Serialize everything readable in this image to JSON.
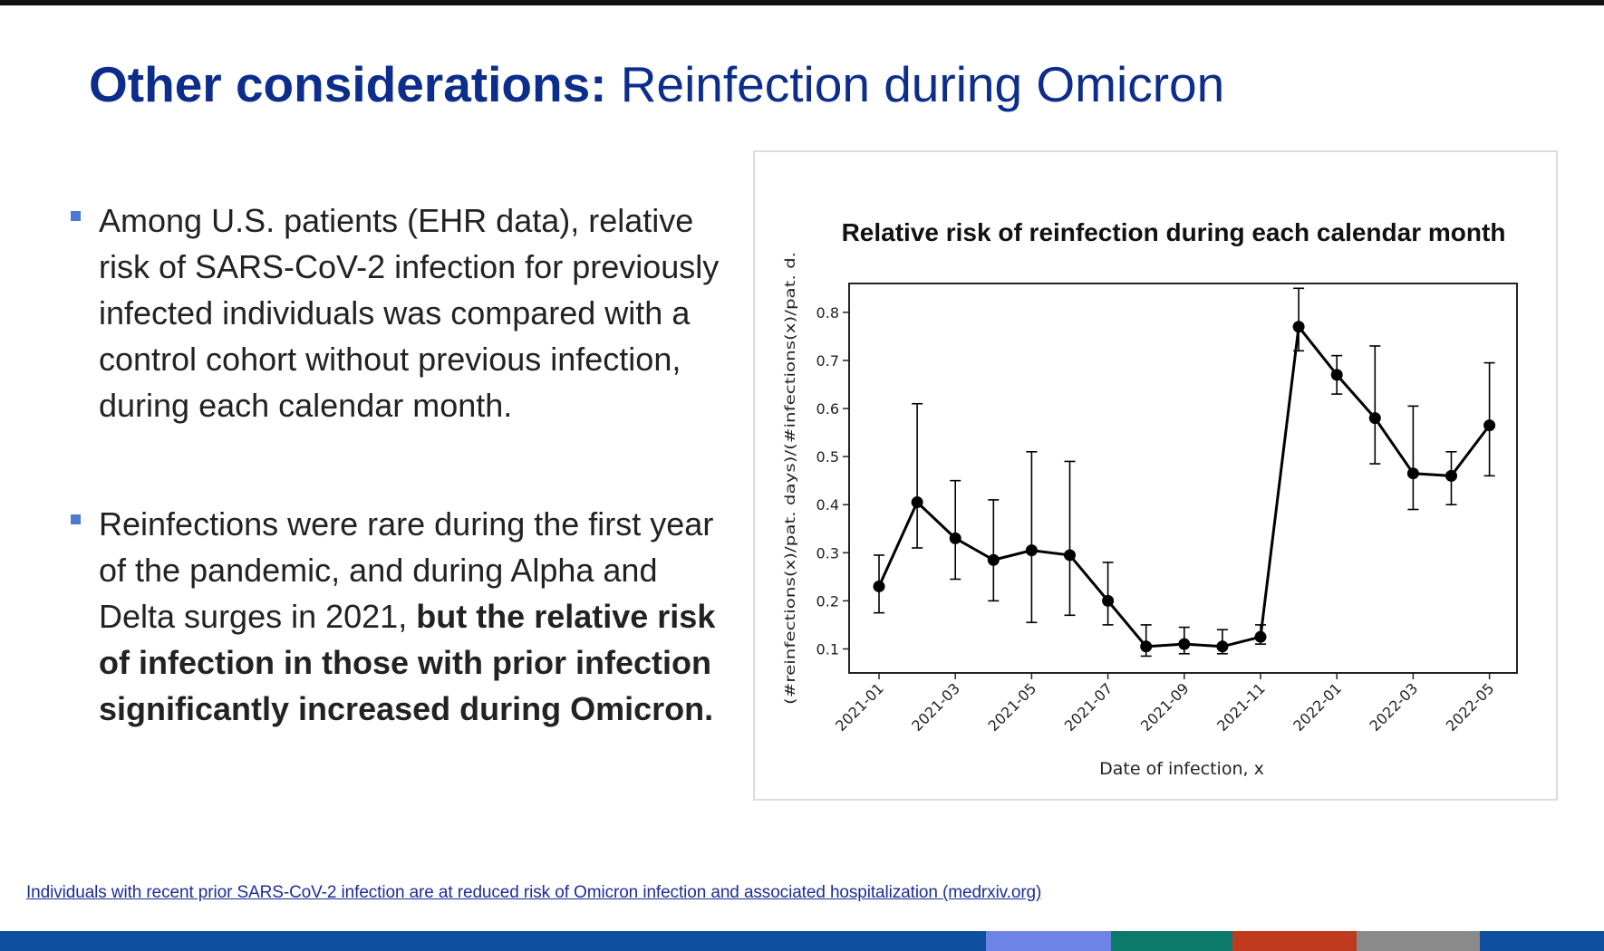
{
  "slide": {
    "title_bold": "Other considerations:",
    "title_rest": " Reinfection during Omicron",
    "bullet1": "Among U.S. patients (EHR data), relative risk of SARS-CoV-2 infection for previously infected individuals was compared with a control cohort without previous infection, during each calendar month.",
    "bullet2_plain": "Reinfections were rare during the first year of the pandemic, and during Alpha and Delta surges in 2021,",
    "bullet2_bold": " but the relative risk of infection in those with prior infection significantly increased during Omicron.",
    "footnote": "Individuals with recent prior SARS-CoV-2 infection are at reduced risk of Omicron infection and associated hospitalization (medrxiv.org)"
  },
  "chart_data": {
    "type": "line",
    "title": "Relative risk of reinfection during each calendar month",
    "xlabel": "Date of infection, x",
    "ylabel": "(#reinfections(x)/pat. days)/(#infections(x)/pat. d.",
    "ylim": [
      0.05,
      0.86
    ],
    "yticks": [
      "0.1",
      "0.2",
      "0.3",
      "0.4",
      "0.5",
      "0.6",
      "0.7",
      "0.8"
    ],
    "xticks": [
      "2021-01",
      "2021-03",
      "2021-05",
      "2021-07",
      "2021-09",
      "2021-11",
      "2022-01",
      "2022-03",
      "2022-05"
    ],
    "grid": false,
    "color": "#000000",
    "points": [
      {
        "x": "2021-01",
        "y": 0.23,
        "lo": 0.175,
        "hi": 0.295
      },
      {
        "x": "2021-02",
        "y": 0.405,
        "lo": 0.31,
        "hi": 0.61
      },
      {
        "x": "2021-03",
        "y": 0.33,
        "lo": 0.245,
        "hi": 0.45
      },
      {
        "x": "2021-04",
        "y": 0.285,
        "lo": 0.2,
        "hi": 0.41
      },
      {
        "x": "2021-05",
        "y": 0.305,
        "lo": 0.155,
        "hi": 0.51
      },
      {
        "x": "2021-06",
        "y": 0.295,
        "lo": 0.17,
        "hi": 0.49
      },
      {
        "x": "2021-07",
        "y": 0.2,
        "lo": 0.15,
        "hi": 0.28
      },
      {
        "x": "2021-08",
        "y": 0.105,
        "lo": 0.085,
        "hi": 0.15
      },
      {
        "x": "2021-09",
        "y": 0.11,
        "lo": 0.09,
        "hi": 0.145
      },
      {
        "x": "2021-10",
        "y": 0.105,
        "lo": 0.09,
        "hi": 0.14
      },
      {
        "x": "2021-11",
        "y": 0.125,
        "lo": 0.11,
        "hi": 0.15
      },
      {
        "x": "2021-12",
        "y": 0.77,
        "lo": 0.72,
        "hi": 0.85
      },
      {
        "x": "2022-01",
        "y": 0.67,
        "lo": 0.63,
        "hi": 0.71
      },
      {
        "x": "2022-02",
        "y": 0.58,
        "lo": 0.485,
        "hi": 0.73
      },
      {
        "x": "2022-03",
        "y": 0.465,
        "lo": 0.39,
        "hi": 0.605
      },
      {
        "x": "2022-04",
        "y": 0.46,
        "lo": 0.4,
        "hi": 0.51
      },
      {
        "x": "2022-05",
        "y": 0.565,
        "lo": 0.46,
        "hi": 0.695
      }
    ]
  },
  "theme": {
    "title_color": "#0d2d8c",
    "bullet_marker_color": "#4a7ad2",
    "bottom_bar": [
      "#0f4fa0",
      "#6d84e6",
      "#0b7a6a",
      "#c03a1f",
      "#8a8a8a",
      "#0f4fa0"
    ]
  }
}
